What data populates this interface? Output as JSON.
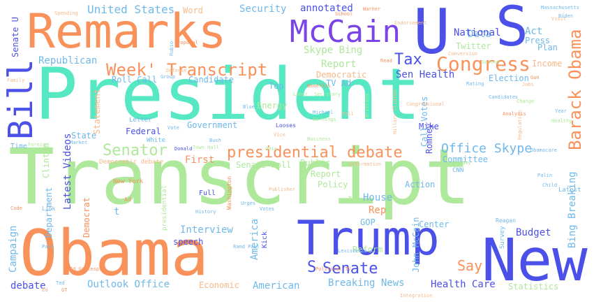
{
  "palette": {
    "mint": "#55e8c2",
    "orange": "#f9915b",
    "blue": "#4a50e8",
    "green": "#aee89a",
    "sky": "#6fb8ea",
    "peach": "#f6b98a",
    "purple": "#7b44e4"
  },
  "words": [
    {
      "text": "President",
      "color": "#55e8c2"
    },
    {
      "text": "Transcript",
      "color": "#aee89a"
    },
    {
      "text": "Obama",
      "color": "#f9915b"
    },
    {
      "text": "Remarks",
      "color": "#f9915b"
    },
    {
      "text": "Trump",
      "color": "#4a50e8"
    },
    {
      "text": "McCain",
      "color": "#7b44e4"
    },
    {
      "text": "New",
      "color": "#4a50e8"
    },
    {
      "text": "U",
      "color": "#4a50e8"
    },
    {
      "text": "S",
      "color": "#4a50e8"
    },
    {
      "text": "Bill",
      "color": "#4a50e8"
    },
    {
      "text": "Week' Transcript",
      "color": "#f9915b"
    },
    {
      "text": "Congress",
      "color": "#f9915b"
    },
    {
      "text": "Barack Obama",
      "color": "#f9915b"
    },
    {
      "text": "presidential debate",
      "color": "#f9915b"
    },
    {
      "text": "Senator",
      "color": "#aee89a"
    },
    {
      "text": "Senate",
      "color": "#4a50e8"
    },
    {
      "text": "Tax",
      "color": "#4a50e8"
    },
    {
      "text": "S",
      "color": "#4a50e8"
    },
    {
      "text": "Say",
      "color": "#f9915b"
    },
    {
      "text": "Office Skype",
      "color": "#6fb8ea"
    },
    {
      "text": "United States",
      "color": "#6fb8ea"
    },
    {
      "text": "Security",
      "color": "#6fb8ea"
    },
    {
      "text": "annotated",
      "color": "#4a50e8"
    },
    {
      "text": "Word",
      "color": "#f6b98a"
    },
    {
      "text": "Senate U",
      "color": "#4a50e8"
    },
    {
      "text": "Republican",
      "color": "#6fb8ea"
    },
    {
      "text": "Skype Bing",
      "color": "#aee89a"
    },
    {
      "text": "Roll Call",
      "color": "#6fb8ea"
    },
    {
      "text": "Candidate",
      "color": "#6fb8ea"
    },
    {
      "text": "Democratic",
      "color": "#f6b98a"
    },
    {
      "text": "Report",
      "color": "#aee89a"
    },
    {
      "text": "TV Ad",
      "color": "#6fb8ea"
    },
    {
      "text": "Top",
      "color": "#6fb8ea"
    },
    {
      "text": "Energy",
      "color": "#aee89a"
    },
    {
      "text": "Sen Health",
      "color": "#4a50e8"
    },
    {
      "text": "Data",
      "color": "#6fb8ea"
    },
    {
      "text": "National",
      "color": "#4a50e8"
    },
    {
      "text": "Act",
      "color": "#6fb8ea"
    },
    {
      "text": "Press",
      "color": "#6fb8ea"
    },
    {
      "text": "Twitter",
      "color": "#aee89a"
    },
    {
      "text": "Plan",
      "color": "#6fb8ea"
    },
    {
      "text": "Income",
      "color": "#f6b98a"
    },
    {
      "text": "Election",
      "color": "#6fb8ea"
    },
    {
      "text": "Statement",
      "color": "#f6b98a"
    },
    {
      "text": "State",
      "color": "#6fb8ea"
    },
    {
      "text": "Federal",
      "color": "#4a50e8"
    },
    {
      "text": "Government",
      "color": "#6fb8ea"
    },
    {
      "text": "Latest Videos",
      "color": "#4a50e8"
    },
    {
      "text": "Senate Roll",
      "color": "#aee89a"
    },
    {
      "text": "First",
      "color": "#f9915b"
    },
    {
      "text": "Public",
      "color": "#aee89a"
    },
    {
      "text": "Committee",
      "color": "#6fb8ea"
    },
    {
      "text": "Policy",
      "color": "#aee89a"
    },
    {
      "text": "Action",
      "color": "#6fb8ea"
    },
    {
      "text": "Report",
      "color": "#aee89a"
    },
    {
      "text": "House",
      "color": "#6fb8ea"
    },
    {
      "text": "Job",
      "color": "#aee89a"
    },
    {
      "text": "Rep",
      "color": "#f9915b"
    },
    {
      "text": "Department",
      "color": "#6fb8ea"
    },
    {
      "text": "Democrat",
      "color": "#f9915b"
    },
    {
      "text": "Interview",
      "color": "#6fb8ea"
    },
    {
      "text": "speech",
      "color": "#4a50e8"
    },
    {
      "text": "America",
      "color": "#6fb8ea"
    },
    {
      "text": "American",
      "color": "#6fb8ea"
    },
    {
      "text": "Reform",
      "color": "#aee89a"
    },
    {
      "text": "Breaking News",
      "color": "#6fb8ea"
    },
    {
      "text": "Health Care",
      "color": "#4a50e8"
    },
    {
      "text": "Budget",
      "color": "#4a50e8"
    },
    {
      "text": "John McCain",
      "color": "#6fb8ea"
    },
    {
      "text": "Bing Breaking",
      "color": "#6fb8ea"
    },
    {
      "text": "GOP",
      "color": "#6fb8ea"
    },
    {
      "text": "Center",
      "color": "#6fb8ea"
    },
    {
      "text": "Outlook Office",
      "color": "#6fb8ea"
    },
    {
      "text": "Economic",
      "color": "#f6b98a"
    },
    {
      "text": "Statistics",
      "color": "#aee89a"
    },
    {
      "text": "debate",
      "color": "#4a50e8"
    },
    {
      "text": "Campaign",
      "color": "#6fb8ea"
    },
    {
      "text": "Clinton",
      "color": "#aee89a"
    },
    {
      "text": "New York",
      "color": "#f9915b"
    },
    {
      "text": "Democratic debate",
      "color": "#f6b98a"
    },
    {
      "text": "Time",
      "color": "#6fb8ea"
    },
    {
      "text": "White",
      "color": "#6fb8ea"
    },
    {
      "text": "Mike",
      "color": "#4a50e8"
    },
    {
      "text": "Romney",
      "color": "#4a50e8"
    },
    {
      "text": "Call Votes",
      "color": "#6fb8ea"
    },
    {
      "text": "Latest",
      "color": "#6fb8ea"
    },
    {
      "text": "Full",
      "color": "#4a50e8"
    },
    {
      "text": "Kick",
      "color": "#4a50e8"
    },
    {
      "text": "Survey",
      "color": "#6fb8ea"
    },
    {
      "text": "Spending",
      "color": "#f6b98a"
    },
    {
      "text": "Letter",
      "color": "#6fb8ea"
    },
    {
      "text": "Reagan",
      "color": "#6fb8ea"
    },
    {
      "text": "CNN",
      "color": "#6fb8ea"
    },
    {
      "text": "t",
      "color": "#6fb8ea"
    },
    {
      "text": "Ad",
      "color": "#f9915b"
    },
    {
      "text": "Link",
      "color": "#6fb8ea"
    },
    {
      "text": "Rand Paul",
      "color": "#6fb8ea"
    },
    {
      "text": "Political TV",
      "color": "#f9915b"
    },
    {
      "text": "Publisher",
      "color": "#f6b98a"
    },
    {
      "text": "Donald",
      "color": "#4a50e8"
    },
    {
      "text": "Washington",
      "color": "#f9915b"
    },
    {
      "text": "presidential",
      "color": "#aee89a"
    },
    {
      "text": "Candidates",
      "color": "#6fb8ea"
    },
    {
      "text": "Conversion",
      "color": "#f6b98a"
    },
    {
      "text": "School",
      "color": "#f9915b"
    },
    {
      "text": "Information",
      "color": "#f6b98a"
    },
    {
      "text": "economy",
      "color": "#aee89a"
    },
    {
      "text": "Palin",
      "color": "#6fb8ea"
    },
    {
      "text": "Child",
      "color": "#6fb8ea"
    },
    {
      "text": "Defense",
      "color": "#f6b98a"
    },
    {
      "text": "Group",
      "color": "#6fb8ea"
    },
    {
      "text": "Bush",
      "color": "#6fb8ea"
    },
    {
      "text": "Family",
      "color": "#f6b98a"
    },
    {
      "text": "Code",
      "color": "#f9915b"
    },
    {
      "text": "Paul",
      "color": "#6fb8ea"
    },
    {
      "text": "Labor",
      "color": "#aee89a"
    },
    {
      "text": "Secretary",
      "color": "#aee89a"
    },
    {
      "text": "Lexisnexis",
      "color": "#6fb8ea"
    },
    {
      "text": "Integration",
      "color": "#f6b98a"
    },
    {
      "text": "Massachusetts",
      "color": "#6fb8ea"
    },
    {
      "text": "Warner",
      "color": "#f9915b"
    },
    {
      "text": "Biden",
      "color": "#6fb8ea"
    },
    {
      "text": "Rating",
      "color": "#6fb8ea"
    },
    {
      "text": "Poll",
      "color": "#f6b98a"
    },
    {
      "text": "Market",
      "color": "#6fb8ea"
    },
    {
      "text": "Foreign",
      "color": "#aee89a"
    },
    {
      "text": "Town Hall",
      "color": "#aee89a"
    },
    {
      "text": "History",
      "color": "#6fb8ea"
    },
    {
      "text": "Urges",
      "color": "#6fb8ea"
    },
    {
      "text": "Votes",
      "color": "#6fb8ea"
    },
    {
      "text": "Year",
      "color": "#6fb8ea"
    },
    {
      "text": "Healthy",
      "color": "#aee89a"
    },
    {
      "text": "Regulation",
      "color": "#f6b98a"
    },
    {
      "text": "Analysis",
      "color": "#f9915b"
    },
    {
      "text": "Ohio",
      "color": "#aee89a"
    },
    {
      "text": "Obamacare",
      "color": "#6fb8ea"
    },
    {
      "text": "Change",
      "color": "#aee89a"
    },
    {
      "text": "Blue",
      "color": "#6fb8ea"
    },
    {
      "text": "Earnings",
      "color": "#aee89a"
    },
    {
      "text": "Michael",
      "color": "#6fb8ea"
    },
    {
      "text": "Looses",
      "color": "#4a50e8"
    },
    {
      "text": "Briefing",
      "color": "#aee89a"
    },
    {
      "text": "Hillary Clinton",
      "color": "#f6b98a"
    },
    {
      "text": "Benefits",
      "color": "#f9915b"
    },
    {
      "text": "Read",
      "color": "#f9915b"
    },
    {
      "text": "Proposal",
      "color": "#f9915b"
    },
    {
      "text": "Endorsement",
      "color": "#f6b98a"
    },
    {
      "text": "Jobs",
      "color": "#f6b98a"
    },
    {
      "text": "Rubio",
      "color": "#6fb8ea"
    },
    {
      "text": "Visit",
      "color": "#f6b98a"
    },
    {
      "text": "Second",
      "color": "#aee89a"
    },
    {
      "text": "Congressional",
      "color": "#f6b98a"
    },
    {
      "text": "Gun",
      "color": "#f9915b"
    },
    {
      "text": "Vote",
      "color": "#6fb8ea"
    },
    {
      "text": "Vice",
      "color": "#f6b98a"
    },
    {
      "text": "Business",
      "color": "#aee89a"
    },
    {
      "text": "Ted",
      "color": "#6fb8ea"
    },
    {
      "text": "Ed Gillespie",
      "color": "#f9915b"
    },
    {
      "text": "GT",
      "color": "#f9915b"
    },
    {
      "text": "Ed",
      "color": "#f6b98a"
    }
  ]
}
